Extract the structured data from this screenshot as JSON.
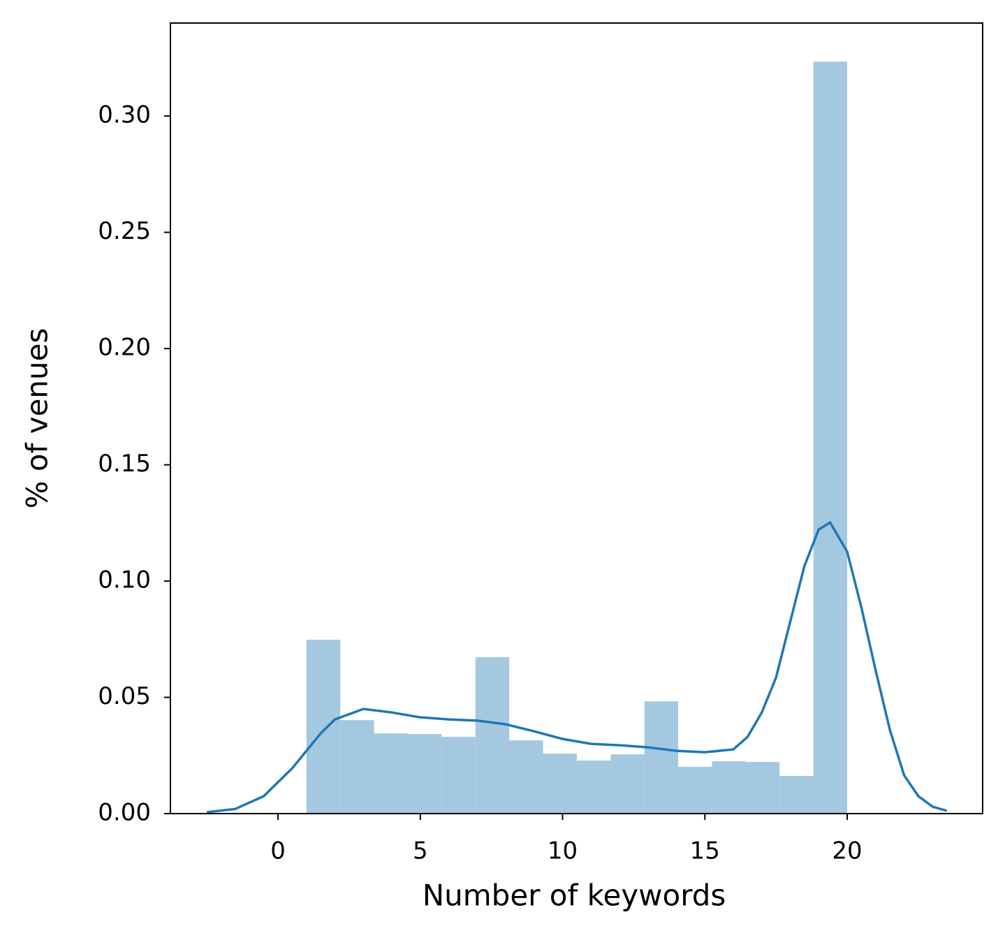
{
  "chart_data": {
    "type": "histogram",
    "xlabel": "Number of keywords",
    "ylabel": "% of venues",
    "bins": [
      1,
      2.1875,
      3.375,
      4.5625,
      5.75,
      6.9375,
      8.125,
      9.3125,
      10.5,
      11.6875,
      12.875,
      14.0625,
      15.25,
      16.4375,
      17.625,
      18.8125,
      20
    ],
    "values": [
      0.0748,
      0.0402,
      0.0345,
      0.0342,
      0.033,
      0.0673,
      0.0315,
      0.0258,
      0.0228,
      0.0255,
      0.0483,
      0.0201,
      0.0225,
      0.0222,
      0.0162,
      0.3234
    ],
    "color": "#a5c8e1",
    "kde": {
      "color": "#1f77b4",
      "x": [
        -2.5,
        -1.5,
        -0.5,
        0.5,
        1.0,
        1.5,
        2.0,
        3.0,
        4.0,
        5.0,
        6.0,
        7.0,
        8.0,
        9.0,
        10,
        11,
        12,
        13,
        14,
        15,
        16,
        16.5,
        17,
        17.5,
        18,
        18.5,
        19,
        19.4,
        20,
        20.5,
        21,
        21.5,
        22,
        22.5,
        23,
        23.5
      ],
      "values": [
        0.0006,
        0.002,
        0.0075,
        0.0195,
        0.027,
        0.0345,
        0.0405,
        0.045,
        0.0435,
        0.0414,
        0.0405,
        0.04,
        0.0384,
        0.0354,
        0.0321,
        0.03,
        0.0294,
        0.0285,
        0.027,
        0.0264,
        0.0276,
        0.033,
        0.0435,
        0.0585,
        0.0826,
        0.1066,
        0.1222,
        0.1252,
        0.1126,
        0.0886,
        0.0616,
        0.036,
        0.0165,
        0.0075,
        0.003,
        0.0012
      ]
    },
    "xlim": [
      -3.78,
      24.76
    ],
    "xticks": [
      0,
      5,
      10,
      15,
      20
    ],
    "ylim": [
      0,
      0.34
    ],
    "yticks": [
      {
        "value": 0,
        "label": "0.00"
      },
      {
        "value": 0.05,
        "label": "0.05"
      },
      {
        "value": 0.1,
        "label": "0.10"
      },
      {
        "value": 0.15,
        "label": "0.15"
      },
      {
        "value": 0.2,
        "label": "0.20"
      },
      {
        "value": 0.25,
        "label": "0.25"
      },
      {
        "value": 0.3,
        "label": "0.30"
      }
    ]
  }
}
